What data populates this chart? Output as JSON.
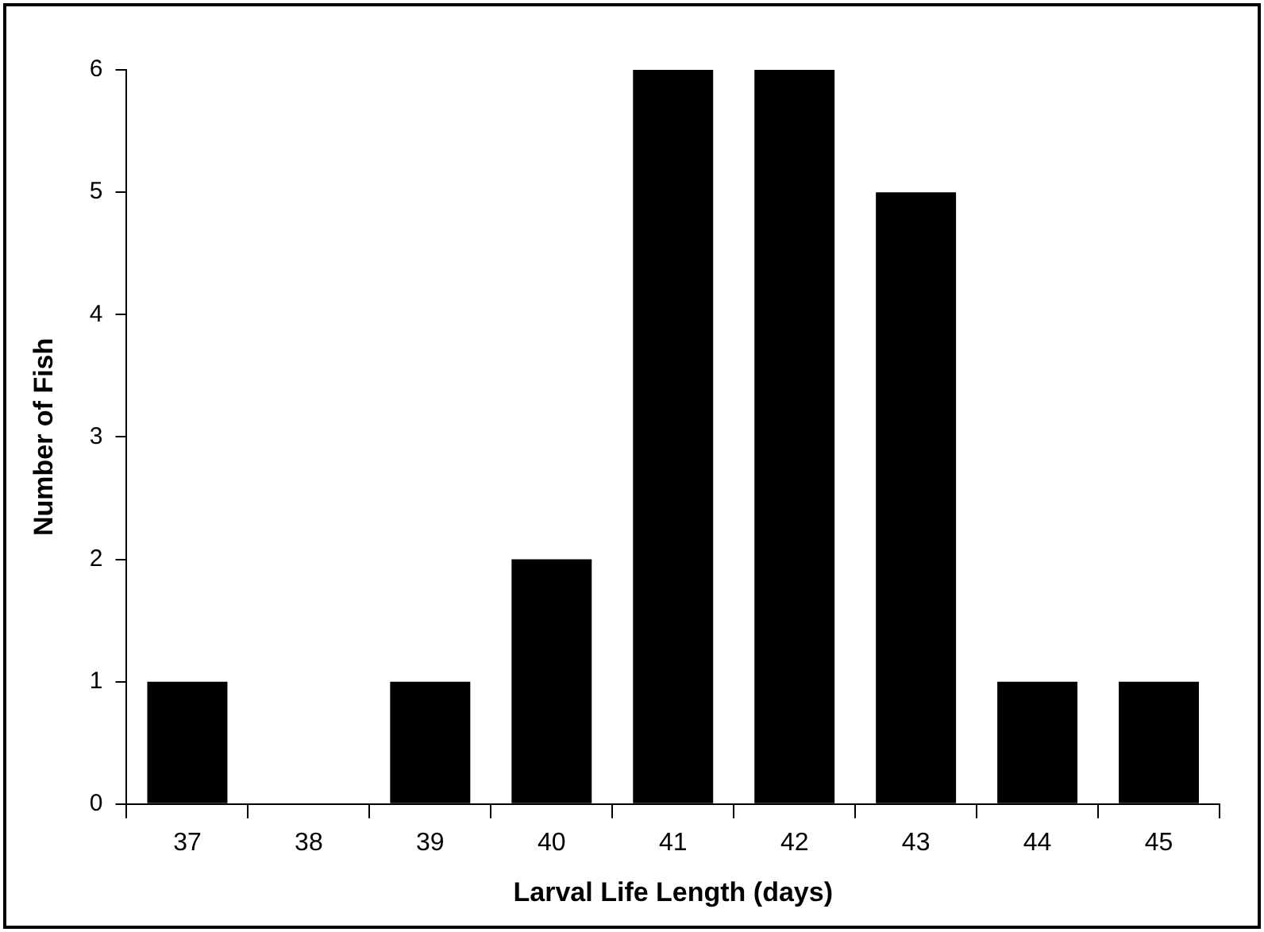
{
  "chart_data": {
    "type": "bar",
    "xlabel": "Larval Life Length (days)",
    "ylabel": "Number of Fish",
    "categories": [
      "37",
      "38",
      "39",
      "40",
      "41",
      "42",
      "43",
      "44",
      "45"
    ],
    "values": [
      1,
      0,
      1,
      2,
      6,
      6,
      5,
      1,
      1
    ],
    "color": "#000000",
    "ylim": [
      0,
      6
    ],
    "yticks": [
      0,
      1,
      2,
      3,
      4,
      5,
      6
    ],
    "grid": false,
    "legend": false
  }
}
